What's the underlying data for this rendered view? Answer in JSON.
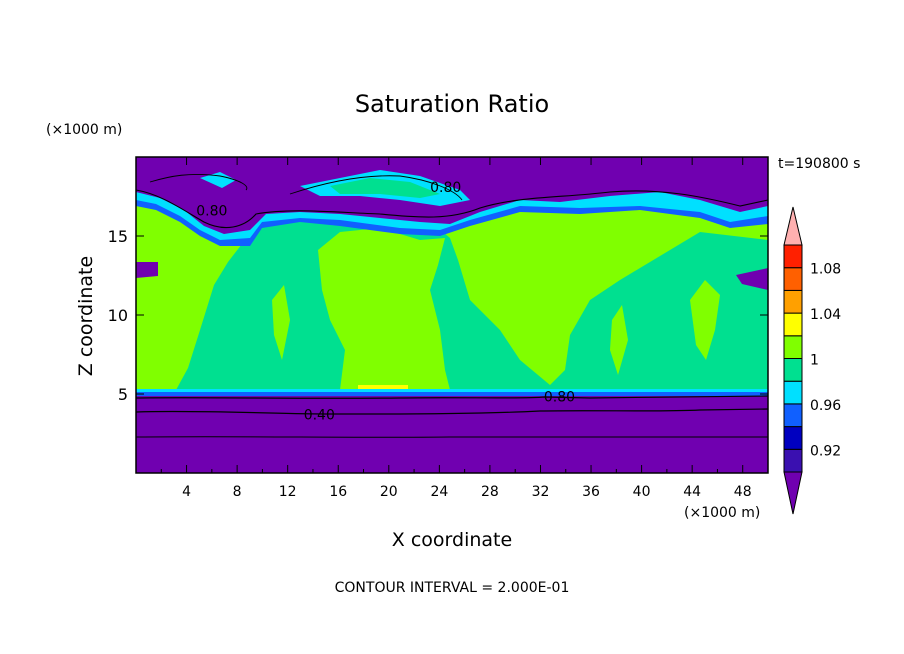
{
  "chart_data": {
    "type": "heatmap",
    "title": "Saturation Ratio",
    "xlabel": "X coordinate",
    "ylabel": "Z coordinate",
    "x_unit": "(×1000 m)",
    "y_unit": "(×1000 m)",
    "time_label": "t=190800 s",
    "footer": "CONTOUR INTERVAL = 2.000E-01",
    "xlim": [
      0,
      50
    ],
    "ylim": [
      0,
      20
    ],
    "x_ticks": [
      4,
      8,
      12,
      16,
      20,
      24,
      28,
      32,
      36,
      40,
      44,
      48
    ],
    "y_ticks": [
      5,
      10,
      15
    ],
    "colorbar": {
      "levels": [
        0.9,
        0.92,
        0.94,
        0.96,
        0.98,
        1,
        1.02,
        1.04,
        1.06,
        1.08,
        1.1
      ],
      "labels": [
        "0.92",
        "0.96",
        "1",
        "1.04",
        "1.08"
      ],
      "label_values": [
        0.92,
        0.96,
        1,
        1.04,
        1.08
      ],
      "colors": [
        "#7000b0",
        "#3a10b0",
        "#0000c0",
        "#1060ff",
        "#00e0ff",
        "#00e090",
        "#80ff00",
        "#ffff00",
        "#ffa000",
        "#ff6000",
        "#ff2000",
        "#ffb0b0"
      ]
    },
    "contour_labels": [
      {
        "text": "0.40",
        "x": 14.5,
        "y": 3.7
      },
      {
        "text": "0.80",
        "x": 33.5,
        "y": 4.85
      },
      {
        "text": "0.80",
        "x": 24.5,
        "y": 18.1
      },
      {
        "text": "0.80",
        "x": 6.0,
        "y": 16.6
      }
    ]
  }
}
